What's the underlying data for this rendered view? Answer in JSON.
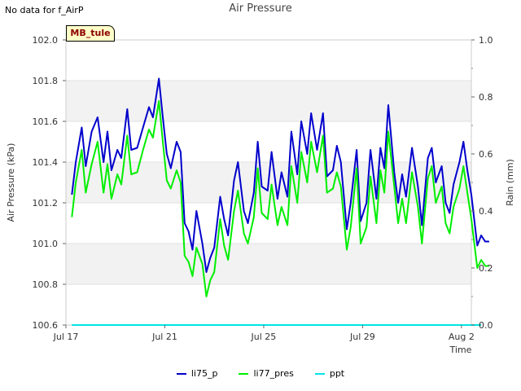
{
  "header": {
    "nodata": "No data for f_AirP",
    "site_label": "MB_tule"
  },
  "chart_data": {
    "type": "line",
    "title": "Air Pressure",
    "xlabel": "Time",
    "ylabel": "Air Pressure (kPa)",
    "y2label": "Rain (mm)",
    "xlim": [
      0,
      20.5
    ],
    "ylim": [
      100.6,
      102.0
    ],
    "y2lim": [
      0.0,
      1.0
    ],
    "x_ticks": [
      0,
      5,
      10,
      15,
      20
    ],
    "x_tick_labels": [
      "Jul 17",
      "Jul 21",
      "Jul 25",
      "Jul 29",
      "Aug 2"
    ],
    "y_ticks": [
      100.6,
      100.8,
      101.0,
      101.2,
      101.4,
      101.6,
      101.8,
      102.0
    ],
    "y_tick_labels": [
      "100.6",
      "100.8",
      "101.0",
      "101.2",
      "101.4",
      "101.6",
      "101.8",
      "102.0"
    ],
    "y2_ticks": [
      0.0,
      0.2,
      0.4,
      0.6,
      0.8,
      1.0
    ],
    "y2_tick_labels": [
      "0.0",
      "0.2",
      "0.4",
      "0.6",
      "0.8",
      "1.0"
    ],
    "grid": true,
    "legend_position": "bottom-center",
    "series": [
      {
        "name": "li75_p",
        "color": "#0000cc",
        "axis": "left",
        "x": [
          0.3,
          0.5,
          0.8,
          1.0,
          1.3,
          1.6,
          1.9,
          2.1,
          2.3,
          2.6,
          2.8,
          3.1,
          3.3,
          3.6,
          3.9,
          4.2,
          4.4,
          4.7,
          4.9,
          5.1,
          5.3,
          5.6,
          5.8,
          6.0,
          6.2,
          6.4,
          6.6,
          6.9,
          7.1,
          7.3,
          7.5,
          7.8,
          8.0,
          8.2,
          8.5,
          8.7,
          9.0,
          9.2,
          9.5,
          9.7,
          9.9,
          10.2,
          10.4,
          10.7,
          10.9,
          11.2,
          11.4,
          11.7,
          11.9,
          12.2,
          12.4,
          12.7,
          13.0,
          13.2,
          13.5,
          13.7,
          13.9,
          14.2,
          14.4,
          14.7,
          14.9,
          15.2,
          15.4,
          15.7,
          15.9,
          16.1,
          16.3,
          16.6,
          16.8,
          17.0,
          17.2,
          17.5,
          17.8,
          18.0,
          18.3,
          18.5,
          18.7,
          19.0,
          19.2,
          19.4,
          19.6,
          19.9,
          20.1,
          20.3,
          20.5,
          20.8,
          21.0,
          21.2,
          21.4
        ],
        "values": [
          101.24,
          101.4,
          101.57,
          101.38,
          101.55,
          101.62,
          101.4,
          101.55,
          101.36,
          101.46,
          101.42,
          101.66,
          101.46,
          101.47,
          101.57,
          101.67,
          101.62,
          101.81,
          101.62,
          101.44,
          101.37,
          101.5,
          101.45,
          101.1,
          101.06,
          100.97,
          101.16,
          101.0,
          100.86,
          100.93,
          100.98,
          101.23,
          101.12,
          101.04,
          101.31,
          101.4,
          101.16,
          101.1,
          101.25,
          101.5,
          101.28,
          101.26,
          101.45,
          101.22,
          101.35,
          101.23,
          101.55,
          101.34,
          101.6,
          101.44,
          101.64,
          101.46,
          101.64,
          101.33,
          101.36,
          101.48,
          101.4,
          101.07,
          101.2,
          101.46,
          101.11,
          101.2,
          101.46,
          101.22,
          101.47,
          101.37,
          101.68,
          101.35,
          101.2,
          101.34,
          101.23,
          101.47,
          101.28,
          101.09,
          101.42,
          101.47,
          101.3,
          101.38,
          101.2,
          101.15,
          101.29,
          101.4,
          101.5,
          101.36,
          101.24,
          100.99,
          101.04,
          101.01,
          101.01
        ]
      },
      {
        "name": "li77_pres",
        "color": "#00ee00",
        "axis": "left",
        "x": [
          0.3,
          0.5,
          0.8,
          1.0,
          1.3,
          1.6,
          1.9,
          2.1,
          2.3,
          2.6,
          2.8,
          3.1,
          3.3,
          3.6,
          3.9,
          4.2,
          4.4,
          4.7,
          4.9,
          5.1,
          5.3,
          5.6,
          5.8,
          6.0,
          6.2,
          6.4,
          6.6,
          6.9,
          7.1,
          7.3,
          7.5,
          7.8,
          8.0,
          8.2,
          8.5,
          8.7,
          9.0,
          9.2,
          9.5,
          9.7,
          9.9,
          10.2,
          10.4,
          10.7,
          10.9,
          11.2,
          11.4,
          11.7,
          11.9,
          12.2,
          12.4,
          12.7,
          13.0,
          13.2,
          13.5,
          13.7,
          13.9,
          14.2,
          14.4,
          14.7,
          14.9,
          15.2,
          15.4,
          15.7,
          15.9,
          16.1,
          16.3,
          16.6,
          16.8,
          17.0,
          17.2,
          17.5,
          17.8,
          18.0,
          18.3,
          18.5,
          18.7,
          19.0,
          19.2,
          19.4,
          19.6,
          19.9,
          20.1,
          20.3,
          20.5,
          20.8,
          21.0,
          21.2,
          21.4
        ],
        "values": [
          101.13,
          101.3,
          101.46,
          101.25,
          101.39,
          101.5,
          101.25,
          101.39,
          101.22,
          101.34,
          101.29,
          101.53,
          101.34,
          101.35,
          101.46,
          101.56,
          101.52,
          101.7,
          101.5,
          101.31,
          101.27,
          101.36,
          101.3,
          100.94,
          100.91,
          100.84,
          100.98,
          100.9,
          100.74,
          100.82,
          100.86,
          101.12,
          100.99,
          100.92,
          101.16,
          101.26,
          101.05,
          101.0,
          101.13,
          101.37,
          101.15,
          101.12,
          101.29,
          101.09,
          101.18,
          101.09,
          101.38,
          101.2,
          101.45,
          101.3,
          101.5,
          101.35,
          101.53,
          101.25,
          101.27,
          101.35,
          101.28,
          100.97,
          101.08,
          101.37,
          101.0,
          101.08,
          101.33,
          101.1,
          101.36,
          101.25,
          101.55,
          101.28,
          101.1,
          101.22,
          101.1,
          101.35,
          101.18,
          101.0,
          101.32,
          101.38,
          101.2,
          101.28,
          101.1,
          101.05,
          101.18,
          101.27,
          101.38,
          101.25,
          101.12,
          100.88,
          100.92,
          100.89,
          100.89
        ]
      },
      {
        "name": "ppt",
        "color": "#00e5e5",
        "axis": "right",
        "x": [
          0.3,
          21.0
        ],
        "values": [
          0.0,
          0.0
        ]
      }
    ]
  }
}
